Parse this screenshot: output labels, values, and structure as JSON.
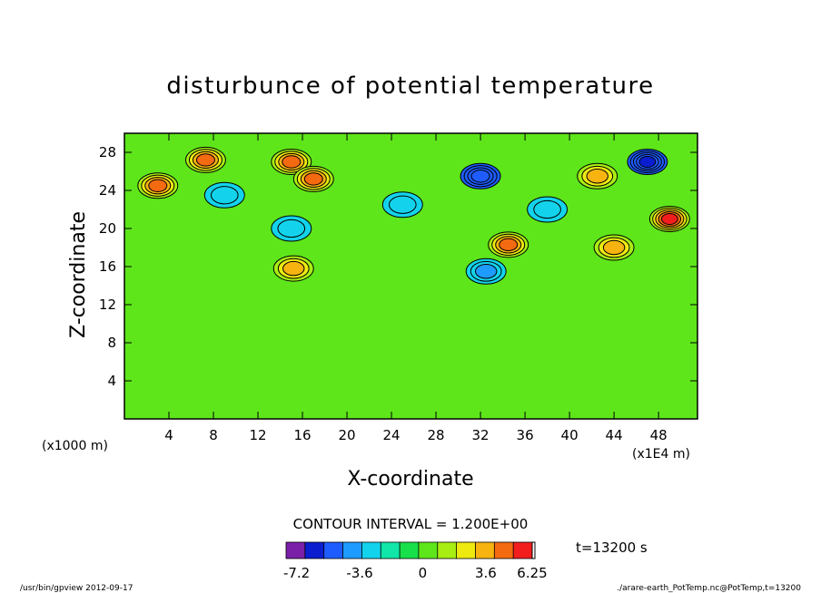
{
  "chart_data": {
    "type": "heatmap",
    "title": "disturbunce of potential temperature",
    "xlabel": "X-coordinate",
    "ylabel": "Z-coordinate",
    "x_unit_label": "(x1000 m)",
    "x_scale_label": "(x1E4 m)",
    "xlim": [
      0,
      51.5
    ],
    "ylim": [
      0,
      30
    ],
    "x_ticks": [
      4,
      8,
      12,
      16,
      20,
      24,
      28,
      32,
      36,
      40,
      44,
      48
    ],
    "y_ticks": [
      4,
      8,
      12,
      16,
      20,
      24,
      28
    ],
    "contour_interval_text": "CONTOUR INTERVAL = 1.200E+00",
    "time_label": "t=13200 s",
    "colorbar": {
      "colors": [
        "#7a1fa8",
        "#0a1ecf",
        "#1e5cff",
        "#1e9bff",
        "#13d3ec",
        "#10e6a8",
        "#18e04a",
        "#5ee61a",
        "#a8ee12",
        "#eeea10",
        "#f7b410",
        "#f46a10",
        "#f21e1e"
      ],
      "tick_labels": [
        "-7.2",
        "-3.6",
        "0",
        "3.6",
        "6.25"
      ],
      "tick_values": [
        -7.2,
        -3.6,
        0,
        3.6,
        6.25
      ],
      "range": [
        -7.8,
        6.25
      ]
    },
    "features": [
      {
        "x": 3,
        "z": 24.5,
        "value": 4.5
      },
      {
        "x": 7.3,
        "z": 27.2,
        "value": 4.8
      },
      {
        "x": 15,
        "z": 27,
        "value": 5.2
      },
      {
        "x": 17,
        "z": 25.2,
        "value": 4.2
      },
      {
        "x": 15.2,
        "z": 15.8,
        "value": 3.2
      },
      {
        "x": 34.5,
        "z": 18.3,
        "value": 5.3
      },
      {
        "x": 42.5,
        "z": 25.5,
        "value": 3.8
      },
      {
        "x": 49,
        "z": 21,
        "value": 5.6
      },
      {
        "x": 44,
        "z": 18,
        "value": 4.0
      },
      {
        "x": 9,
        "z": 23.5,
        "value": -2.7
      },
      {
        "x": 15,
        "z": 20,
        "value": -2.6
      },
      {
        "x": 25,
        "z": 22.5,
        "value": -2.8
      },
      {
        "x": 32,
        "z": 25.5,
        "value": -4.6
      },
      {
        "x": 47,
        "z": 27,
        "value": -5.5
      },
      {
        "x": 32.5,
        "z": 15.5,
        "value": -3.0
      },
      {
        "x": 38,
        "z": 22,
        "value": -2.4
      }
    ]
  },
  "footer": {
    "left": "/usr/bin/gpview  2012-09-17",
    "right": "./arare-earth_PotTemp.nc@PotTemp,t=13200"
  }
}
